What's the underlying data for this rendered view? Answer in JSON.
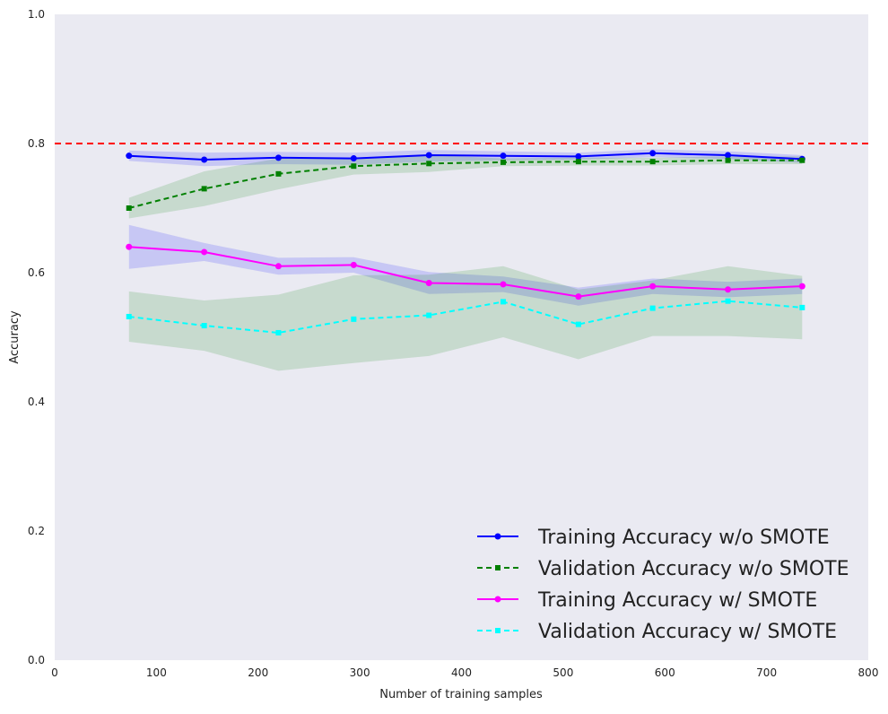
{
  "chart_data": {
    "type": "line",
    "title": "",
    "xlabel": "Number of training samples",
    "ylabel": "Accuracy",
    "xlim": [
      0,
      800
    ],
    "ylim": [
      0.0,
      1.0
    ],
    "xticks": [
      0,
      100,
      200,
      300,
      400,
      500,
      600,
      700,
      800
    ],
    "xtick_labels": [
      "0",
      "100",
      "200",
      "300",
      "400",
      "500",
      "600",
      "700",
      "800"
    ],
    "yticks": [
      0.0,
      0.2,
      0.4,
      0.6,
      0.8,
      1.0
    ],
    "ytick_labels": [
      "0.0",
      "0.2",
      "0.4",
      "0.6",
      "0.8",
      "1.0"
    ],
    "grid": false,
    "legend_position": "bottom-right",
    "reference_line": {
      "y": 0.8,
      "color": "#ff0000",
      "style": "dashed"
    },
    "x": [
      73,
      147,
      220,
      294,
      368,
      441,
      515,
      588,
      662,
      735
    ],
    "series": [
      {
        "name": "Training Accuracy w/o SMOTE",
        "values": [
          0.781,
          0.775,
          0.778,
          0.777,
          0.782,
          0.781,
          0.78,
          0.785,
          0.782,
          0.776
        ],
        "lower": [
          0.773,
          0.765,
          0.768,
          0.767,
          0.772,
          0.774,
          0.775,
          0.779,
          0.776,
          0.77
        ],
        "upper": [
          0.789,
          0.786,
          0.787,
          0.786,
          0.79,
          0.788,
          0.786,
          0.791,
          0.788,
          0.782
        ],
        "color": "#0000ff",
        "band_color": "#0000ff",
        "dash": "solid",
        "marker": "circle"
      },
      {
        "name": "Validation Accuracy w/o SMOTE",
        "values": [
          0.7,
          0.73,
          0.753,
          0.765,
          0.769,
          0.771,
          0.772,
          0.772,
          0.774,
          0.774
        ],
        "lower": [
          0.684,
          0.703,
          0.729,
          0.752,
          0.756,
          0.765,
          0.766,
          0.766,
          0.768,
          0.768
        ],
        "upper": [
          0.716,
          0.757,
          0.777,
          0.778,
          0.782,
          0.777,
          0.778,
          0.778,
          0.78,
          0.78
        ],
        "color": "#008000",
        "band_color": "#008000",
        "dash": "dashed",
        "marker": "square"
      },
      {
        "name": "Training Accuracy w/ SMOTE",
        "values": [
          0.64,
          0.632,
          0.61,
          0.612,
          0.584,
          0.582,
          0.563,
          0.579,
          0.574,
          0.579
        ],
        "lower": [
          0.606,
          0.618,
          0.597,
          0.6,
          0.567,
          0.57,
          0.549,
          0.567,
          0.562,
          0.567
        ],
        "upper": [
          0.674,
          0.646,
          0.623,
          0.624,
          0.601,
          0.594,
          0.577,
          0.591,
          0.586,
          0.591
        ],
        "color": "#ff00ff",
        "band_color": "#0000ff",
        "dash": "solid",
        "marker": "circle"
      },
      {
        "name": "Validation Accuracy w/ SMOTE",
        "values": [
          0.532,
          0.518,
          0.507,
          0.528,
          0.534,
          0.555,
          0.52,
          0.545,
          0.556,
          0.546
        ],
        "lower": [
          0.493,
          0.479,
          0.448,
          0.46,
          0.471,
          0.5,
          0.466,
          0.502,
          0.502,
          0.497
        ],
        "upper": [
          0.571,
          0.557,
          0.566,
          0.596,
          0.597,
          0.61,
          0.574,
          0.588,
          0.61,
          0.595
        ],
        "color": "#00ffff",
        "band_color": "#008000",
        "dash": "dashed",
        "marker": "square"
      }
    ]
  }
}
